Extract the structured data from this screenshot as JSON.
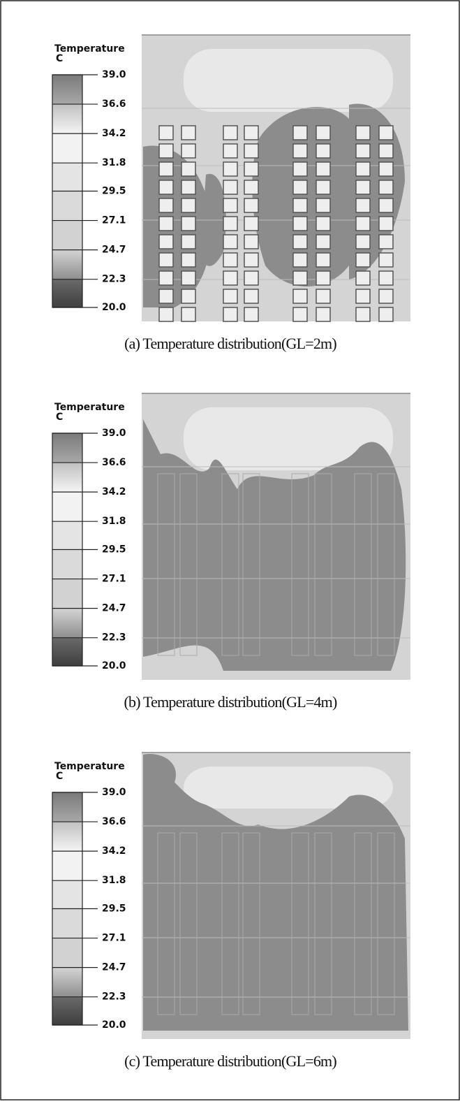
{
  "panels": [
    {
      "legend": {
        "title": "Temperature",
        "unit": "C",
        "ticks": [
          {
            "value": 39.0,
            "label": "39.0"
          },
          {
            "value": 36.6,
            "label": "36.6"
          },
          {
            "value": 34.2,
            "label": "34.2"
          },
          {
            "value": 31.8,
            "label": "31.8"
          },
          {
            "value": 29.5,
            "label": "29.5"
          },
          {
            "value": 27.1,
            "label": "27.1"
          },
          {
            "value": 24.7,
            "label": "24.7"
          },
          {
            "value": 22.3,
            "label": "22.3"
          },
          {
            "value": 20.0,
            "label": "20.0"
          }
        ]
      },
      "caption": "(a) Temperature distribution(GL=2m)"
    },
    {
      "legend": {
        "title": "Temperature",
        "unit": "C",
        "ticks": [
          {
            "value": 39.0,
            "label": "39.0"
          },
          {
            "value": 36.6,
            "label": "36.6"
          },
          {
            "value": 34.2,
            "label": "34.2"
          },
          {
            "value": 31.8,
            "label": "31.8"
          },
          {
            "value": 29.5,
            "label": "29.5"
          },
          {
            "value": 27.1,
            "label": "27.1"
          },
          {
            "value": 24.7,
            "label": "24.7"
          },
          {
            "value": 22.3,
            "label": "22.3"
          },
          {
            "value": 20.0,
            "label": "20.0"
          }
        ]
      },
      "caption": "(b) Temperature distribution(GL=4m)"
    },
    {
      "legend": {
        "title": "Temperature",
        "unit": "C",
        "ticks": [
          {
            "value": 39.0,
            "label": "39.0"
          },
          {
            "value": 36.6,
            "label": "36.6"
          },
          {
            "value": 34.2,
            "label": "34.2"
          },
          {
            "value": 31.8,
            "label": "31.8"
          },
          {
            "value": 29.5,
            "label": "29.5"
          },
          {
            "value": 27.1,
            "label": "27.1"
          },
          {
            "value": 24.7,
            "label": "24.7"
          },
          {
            "value": 22.3,
            "label": "22.3"
          },
          {
            "value": 20.0,
            "label": "20.0"
          }
        ]
      },
      "caption": "(c) Temperature distribution(GL=6m)"
    }
  ]
}
